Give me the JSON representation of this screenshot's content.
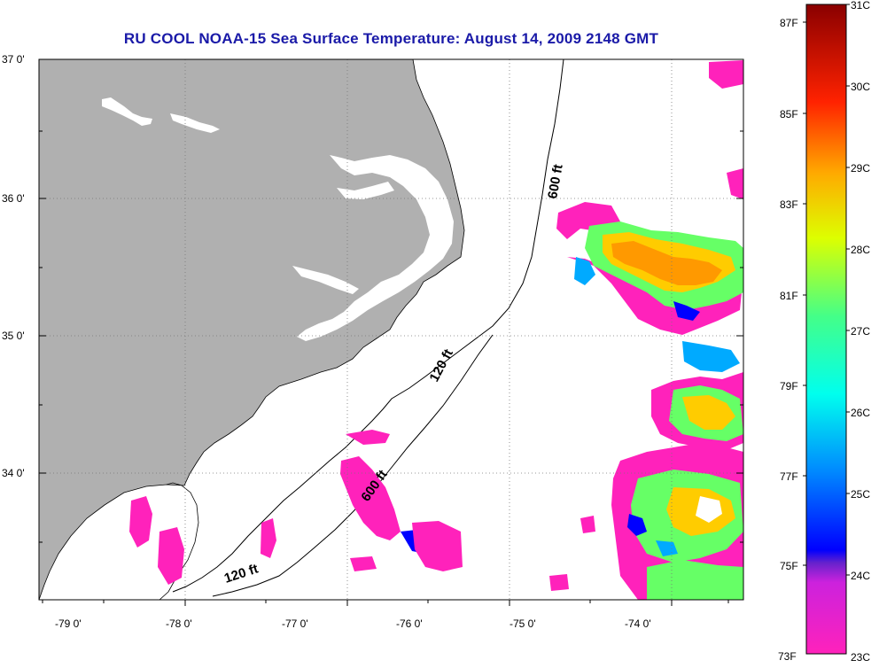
{
  "title": "RU COOL  NOAA-15  Sea Surface Temperature:  August 14, 2009 2148 GMT",
  "axes": {
    "lat_ticks": [
      {
        "value": 37,
        "label": "37 0'"
      },
      {
        "value": 36,
        "label": "36 0'"
      },
      {
        "value": 35,
        "label": "35 0'"
      },
      {
        "value": 34,
        "label": "34 0'"
      }
    ],
    "lon_ticks": [
      {
        "value": -79,
        "label": "-79 0'"
      },
      {
        "value": -78,
        "label": "-78 0'"
      },
      {
        "value": -77,
        "label": "-77 0'"
      },
      {
        "value": -76,
        "label": "-76 0'"
      },
      {
        "value": -75,
        "label": "-75 0'"
      },
      {
        "value": -74,
        "label": "-74 0'"
      }
    ]
  },
  "isobaths": [
    {
      "label": "600 ft"
    },
    {
      "label": "120 ft"
    },
    {
      "label": "600 ft"
    },
    {
      "label": "120 ft"
    }
  ],
  "colorbar": {
    "celsius_labels": [
      "31C",
      "30C",
      "29C",
      "28C",
      "27C",
      "26C",
      "25C",
      "24C",
      "23C"
    ],
    "fahrenheit_labels": [
      "87F",
      "85F",
      "83F",
      "81F",
      "79F",
      "77F",
      "75F",
      "73F"
    ]
  },
  "colors": {
    "land": "#b0b0b0",
    "title": "#1a1aa8",
    "scale": [
      "#ff22bb",
      "#8833dd",
      "#0000ff",
      "#00aaff",
      "#00ffee",
      "#66ff66",
      "#ffff00",
      "#ff9900",
      "#ff2200",
      "#990000"
    ]
  }
}
